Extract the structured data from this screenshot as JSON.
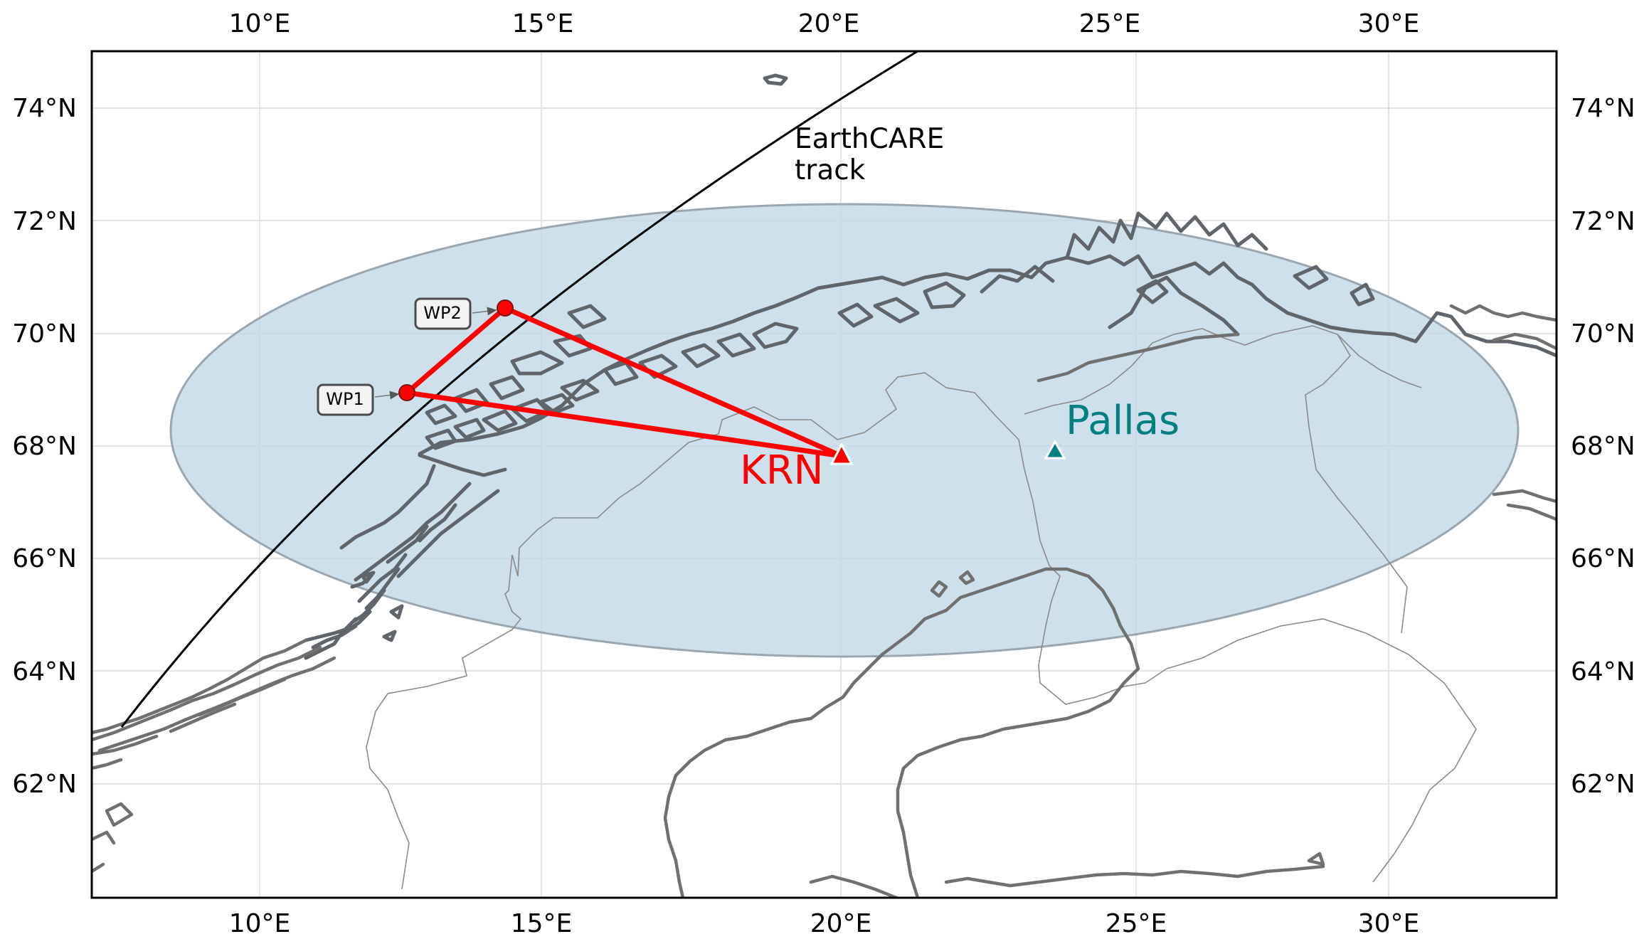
{
  "map": {
    "x_ticks": [
      "10°E",
      "15°E",
      "20°E",
      "25°E",
      "30°E"
    ],
    "y_ticks": [
      "62°N",
      "64°N",
      "66°N",
      "68°N",
      "70°N",
      "72°N",
      "74°N"
    ],
    "extent": {
      "lon": [
        7,
        33
      ],
      "lat": [
        60,
        75
      ]
    }
  },
  "track": {
    "label_line1": "EarthCARE",
    "label_line2": "track",
    "color": "#000000"
  },
  "coverage": {
    "fill": "#c3d8e8",
    "stroke": "#9aa6b0"
  },
  "flight": {
    "color": "#ff0000",
    "waypoints": [
      {
        "label": "WP1",
        "lon": 12.6,
        "lat": 68.95
      },
      {
        "label": "WP2",
        "lon": 14.3,
        "lat": 70.45
      }
    ]
  },
  "stations": [
    {
      "label": "KRN",
      "lon": 20.3,
      "lat": 67.85,
      "color": "#ff0000"
    },
    {
      "label": "Pallas",
      "lon": 24.1,
      "lat": 67.95,
      "color": "#008080"
    }
  ]
}
